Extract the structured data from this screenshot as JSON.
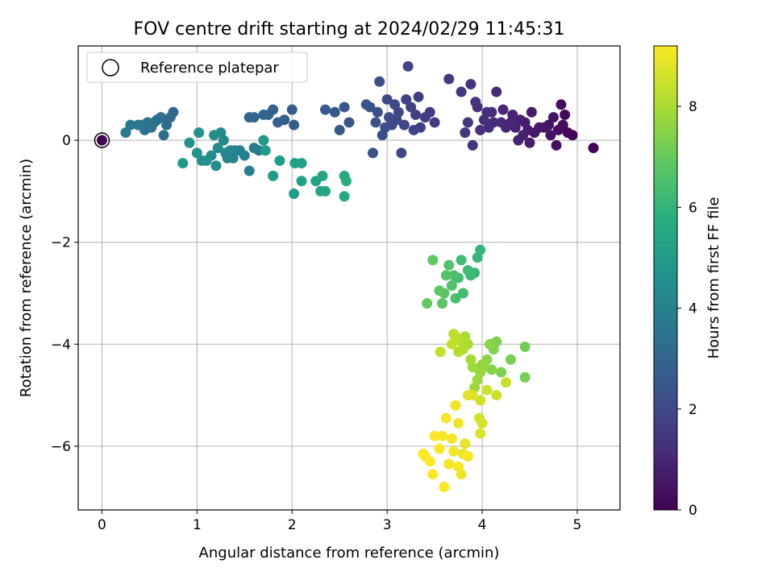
{
  "chart_data": {
    "type": "scatter",
    "title": "FOV centre drift starting at 2024/02/29 11:45:31",
    "xlabel": "Angular distance from reference (arcmin)",
    "ylabel": "Rotation from reference (arcmin)",
    "xlim": [
      -0.25,
      5.45
    ],
    "ylim": [
      -7.25,
      1.85
    ],
    "xticks": [
      0,
      1,
      2,
      3,
      4,
      5
    ],
    "yticks": [
      -6,
      -4,
      -2,
      0
    ],
    "xtick_labels": [
      "0",
      "1",
      "2",
      "3",
      "4",
      "5"
    ],
    "ytick_labels": [
      "−6",
      "−4",
      "−2",
      "0"
    ],
    "grid": true,
    "colormap": "viridis",
    "legend": {
      "location": "upper left",
      "entries": [
        {
          "label": "Reference platepar",
          "marker": "open-circle",
          "x": 0,
          "y": 0
        }
      ]
    },
    "colorbar": {
      "label": "Hours from first FF file",
      "range": [
        0,
        9.2
      ],
      "ticks": [
        0,
        2,
        4,
        6,
        8
      ],
      "tick_labels": [
        "0",
        "2",
        "4",
        "6",
        "8"
      ]
    },
    "points": [
      {
        "x": 5.17,
        "y": -0.15,
        "c": 0.05
      },
      {
        "x": 4.95,
        "y": 0.1,
        "c": 0.1
      },
      {
        "x": 4.9,
        "y": 0.15,
        "c": 0.15
      },
      {
        "x": 4.87,
        "y": 0.5,
        "c": 0.2
      },
      {
        "x": 4.85,
        "y": 0.3,
        "c": 0.25
      },
      {
        "x": 4.83,
        "y": 0.7,
        "c": 0.3
      },
      {
        "x": 4.8,
        "y": 0.2,
        "c": 0.35
      },
      {
        "x": 4.78,
        "y": -0.1,
        "c": 0.4
      },
      {
        "x": 4.75,
        "y": 0.45,
        "c": 0.45
      },
      {
        "x": 4.72,
        "y": 0.1,
        "c": 0.5
      },
      {
        "x": 4.7,
        "y": 0.3,
        "c": 0.5
      },
      {
        "x": 4.65,
        "y": 0.25,
        "c": 0.55
      },
      {
        "x": 4.6,
        "y": 0.25,
        "c": 0.6
      },
      {
        "x": 4.55,
        "y": 0.15,
        "c": 0.6
      },
      {
        "x": 4.52,
        "y": 0.55,
        "c": 0.65
      },
      {
        "x": 4.5,
        "y": -0.05,
        "c": 0.7
      },
      {
        "x": 4.48,
        "y": 0.2,
        "c": 0.7
      },
      {
        "x": 4.45,
        "y": 0.35,
        "c": 0.75
      },
      {
        "x": 4.43,
        "y": 0.1,
        "c": 0.8
      },
      {
        "x": 4.4,
        "y": 0.4,
        "c": 0.8
      },
      {
        "x": 4.38,
        "y": 0.0,
        "c": 0.85
      },
      {
        "x": 4.35,
        "y": 0.25,
        "c": 0.9
      },
      {
        "x": 4.32,
        "y": 0.5,
        "c": 0.9
      },
      {
        "x": 4.3,
        "y": 0.35,
        "c": 0.95
      },
      {
        "x": 4.25,
        "y": 0.25,
        "c": 1.0
      },
      {
        "x": 4.22,
        "y": 0.6,
        "c": 1.0
      },
      {
        "x": 4.2,
        "y": 0.35,
        "c": 1.05
      },
      {
        "x": 4.15,
        "y": 0.95,
        "c": 1.1
      },
      {
        "x": 4.12,
        "y": 0.35,
        "c": 1.1
      },
      {
        "x": 4.1,
        "y": 0.55,
        "c": 1.15
      },
      {
        "x": 4.07,
        "y": 0.25,
        "c": 1.2
      },
      {
        "x": 4.05,
        "y": 0.55,
        "c": 1.2
      },
      {
        "x": 4.02,
        "y": 0.4,
        "c": 1.25
      },
      {
        "x": 3.98,
        "y": 0.2,
        "c": 1.3
      },
      {
        "x": 3.95,
        "y": 0.65,
        "c": 1.3
      },
      {
        "x": 3.93,
        "y": 0.75,
        "c": 1.35
      },
      {
        "x": 3.9,
        "y": -0.1,
        "c": 1.4
      },
      {
        "x": 3.88,
        "y": 1.1,
        "c": 1.4
      },
      {
        "x": 3.85,
        "y": 0.35,
        "c": 1.45
      },
      {
        "x": 3.82,
        "y": 0.15,
        "c": 1.5
      },
      {
        "x": 3.78,
        "y": 0.95,
        "c": 1.5
      },
      {
        "x": 3.65,
        "y": 1.2,
        "c": 1.55
      },
      {
        "x": 3.5,
        "y": 0.35,
        "c": 1.6
      },
      {
        "x": 3.45,
        "y": 0.55,
        "c": 1.6
      },
      {
        "x": 3.4,
        "y": 0.45,
        "c": 1.65
      },
      {
        "x": 3.35,
        "y": 0.25,
        "c": 1.7
      },
      {
        "x": 3.33,
        "y": 0.85,
        "c": 1.7
      },
      {
        "x": 3.3,
        "y": 0.5,
        "c": 1.75
      },
      {
        "x": 3.28,
        "y": 0.2,
        "c": 1.8
      },
      {
        "x": 3.25,
        "y": 0.65,
        "c": 1.8
      },
      {
        "x": 3.22,
        "y": 1.45,
        "c": 1.85
      },
      {
        "x": 3.2,
        "y": 0.8,
        "c": 1.85
      },
      {
        "x": 3.18,
        "y": 0.3,
        "c": 1.9
      },
      {
        "x": 3.15,
        "y": -0.25,
        "c": 1.95
      },
      {
        "x": 3.12,
        "y": 0.55,
        "c": 1.95
      },
      {
        "x": 3.1,
        "y": 0.4,
        "c": 2.0
      },
      {
        "x": 3.08,
        "y": 0.7,
        "c": 2.0
      },
      {
        "x": 3.05,
        "y": 0.3,
        "c": 2.05
      },
      {
        "x": 3.02,
        "y": 0.45,
        "c": 2.1
      },
      {
        "x": 3.0,
        "y": 0.8,
        "c": 2.1
      },
      {
        "x": 2.98,
        "y": 0.25,
        "c": 2.15
      },
      {
        "x": 2.95,
        "y": 0.1,
        "c": 2.2
      },
      {
        "x": 2.92,
        "y": 1.15,
        "c": 2.2
      },
      {
        "x": 2.9,
        "y": 0.55,
        "c": 2.25
      },
      {
        "x": 2.88,
        "y": 0.35,
        "c": 2.3
      },
      {
        "x": 2.85,
        "y": -0.25,
        "c": 2.3
      },
      {
        "x": 2.82,
        "y": 0.65,
        "c": 2.35
      },
      {
        "x": 2.78,
        "y": 0.7,
        "c": 2.4
      },
      {
        "x": 2.6,
        "y": 0.35,
        "c": 2.45
      },
      {
        "x": 2.55,
        "y": 0.65,
        "c": 2.5
      },
      {
        "x": 2.5,
        "y": 0.2,
        "c": 2.5
      },
      {
        "x": 2.45,
        "y": 0.55,
        "c": 2.55
      },
      {
        "x": 2.35,
        "y": 0.6,
        "c": 2.6
      },
      {
        "x": 2.02,
        "y": 0.3,
        "c": 2.65
      },
      {
        "x": 2.0,
        "y": 0.6,
        "c": 2.7
      },
      {
        "x": 1.92,
        "y": 0.4,
        "c": 2.75
      },
      {
        "x": 1.85,
        "y": 0.35,
        "c": 2.8
      },
      {
        "x": 1.8,
        "y": 0.6,
        "c": 2.85
      },
      {
        "x": 1.75,
        "y": 0.5,
        "c": 2.9
      },
      {
        "x": 1.7,
        "y": 0.5,
        "c": 2.95
      },
      {
        "x": 1.6,
        "y": 0.45,
        "c": 3.0
      },
      {
        "x": 1.55,
        "y": 0.45,
        "c": 3.05
      },
      {
        "x": 0.75,
        "y": 0.55,
        "c": 3.1
      },
      {
        "x": 0.72,
        "y": 0.45,
        "c": 3.15
      },
      {
        "x": 0.68,
        "y": 0.3,
        "c": 3.2
      },
      {
        "x": 0.65,
        "y": 0.1,
        "c": 3.25
      },
      {
        "x": 0.62,
        "y": 0.45,
        "c": 3.3
      },
      {
        "x": 0.58,
        "y": 0.4,
        "c": 3.35
      },
      {
        "x": 0.55,
        "y": 0.35,
        "c": 3.4
      },
      {
        "x": 0.52,
        "y": 0.25,
        "c": 3.45
      },
      {
        "x": 0.48,
        "y": 0.35,
        "c": 3.5
      },
      {
        "x": 0.45,
        "y": 0.2,
        "c": 3.55
      },
      {
        "x": 0.42,
        "y": 0.3,
        "c": 3.6
      },
      {
        "x": 0.38,
        "y": 0.3,
        "c": 3.65
      },
      {
        "x": 0.3,
        "y": 0.3,
        "c": 3.7
      },
      {
        "x": 0.25,
        "y": 0.15,
        "c": 3.75
      },
      {
        "x": 1.65,
        "y": -0.2,
        "c": 3.8
      },
      {
        "x": 1.6,
        "y": -0.15,
        "c": 3.85
      },
      {
        "x": 1.55,
        "y": -0.6,
        "c": 3.9
      },
      {
        "x": 1.5,
        "y": -0.3,
        "c": 3.95
      },
      {
        "x": 1.45,
        "y": -0.2,
        "c": 4.0
      },
      {
        "x": 1.4,
        "y": -0.2,
        "c": 4.05
      },
      {
        "x": 1.38,
        "y": -0.35,
        "c": 4.1
      },
      {
        "x": 1.35,
        "y": -0.2,
        "c": 4.15
      },
      {
        "x": 1.32,
        "y": -0.35,
        "c": 4.2
      },
      {
        "x": 1.3,
        "y": -0.25,
        "c": 4.25
      },
      {
        "x": 1.28,
        "y": 0.0,
        "c": 4.3
      },
      {
        "x": 1.25,
        "y": 0.15,
        "c": 4.35
      },
      {
        "x": 1.22,
        "y": -0.15,
        "c": 4.4
      },
      {
        "x": 1.2,
        "y": -0.5,
        "c": 4.45
      },
      {
        "x": 1.18,
        "y": 0.1,
        "c": 4.5
      },
      {
        "x": 1.15,
        "y": -0.3,
        "c": 4.55
      },
      {
        "x": 1.1,
        "y": -0.4,
        "c": 4.6
      },
      {
        "x": 1.05,
        "y": -0.4,
        "c": 4.65
      },
      {
        "x": 1.02,
        "y": 0.15,
        "c": 4.7
      },
      {
        "x": 1.0,
        "y": -0.25,
        "c": 4.75
      },
      {
        "x": 0.92,
        "y": -0.05,
        "c": 4.8
      },
      {
        "x": 0.85,
        "y": -0.45,
        "c": 4.85
      },
      {
        "x": 1.7,
        "y": -0.0,
        "c": 4.9
      },
      {
        "x": 1.72,
        "y": -0.2,
        "c": 4.95
      },
      {
        "x": 1.8,
        "y": -0.7,
        "c": 5.0
      },
      {
        "x": 1.87,
        "y": -0.4,
        "c": 5.05
      },
      {
        "x": 2.02,
        "y": -1.05,
        "c": 5.1
      },
      {
        "x": 2.03,
        "y": -0.45,
        "c": 5.15
      },
      {
        "x": 2.1,
        "y": -0.45,
        "c": 5.2
      },
      {
        "x": 2.1,
        "y": -0.8,
        "c": 5.25
      },
      {
        "x": 2.25,
        "y": -0.8,
        "c": 5.3
      },
      {
        "x": 2.3,
        "y": -1.0,
        "c": 5.35
      },
      {
        "x": 2.32,
        "y": -0.7,
        "c": 5.4
      },
      {
        "x": 2.35,
        "y": -1.0,
        "c": 5.45
      },
      {
        "x": 2.55,
        "y": -0.7,
        "c": 5.5
      },
      {
        "x": 2.55,
        "y": -1.1,
        "c": 5.55
      },
      {
        "x": 2.57,
        "y": -0.8,
        "c": 5.6
      },
      {
        "x": 3.98,
        "y": -2.15,
        "c": 6.1
      },
      {
        "x": 3.95,
        "y": -2.3,
        "c": 6.15
      },
      {
        "x": 3.92,
        "y": -2.6,
        "c": 6.2
      },
      {
        "x": 3.88,
        "y": -2.65,
        "c": 6.25
      },
      {
        "x": 3.85,
        "y": -2.55,
        "c": 6.3
      },
      {
        "x": 3.78,
        "y": -2.35,
        "c": 6.35
      },
      {
        "x": 3.8,
        "y": -3.0,
        "c": 6.4
      },
      {
        "x": 3.75,
        "y": -2.7,
        "c": 6.45
      },
      {
        "x": 3.72,
        "y": -3.1,
        "c": 6.5
      },
      {
        "x": 3.7,
        "y": -2.65,
        "c": 6.55
      },
      {
        "x": 3.68,
        "y": -2.85,
        "c": 6.6
      },
      {
        "x": 3.65,
        "y": -2.45,
        "c": 6.65
      },
      {
        "x": 3.62,
        "y": -2.65,
        "c": 6.7
      },
      {
        "x": 3.6,
        "y": -3.0,
        "c": 6.75
      },
      {
        "x": 3.58,
        "y": -3.2,
        "c": 6.8
      },
      {
        "x": 3.55,
        "y": -2.95,
        "c": 6.85
      },
      {
        "x": 3.48,
        "y": -2.35,
        "c": 6.9
      },
      {
        "x": 3.42,
        "y": -3.2,
        "c": 6.95
      },
      {
        "x": 4.45,
        "y": -4.05,
        "c": 7.2
      },
      {
        "x": 4.45,
        "y": -4.65,
        "c": 7.25
      },
      {
        "x": 4.3,
        "y": -4.3,
        "c": 7.3
      },
      {
        "x": 4.2,
        "y": -4.55,
        "c": 7.35
      },
      {
        "x": 4.15,
        "y": -3.95,
        "c": 7.4
      },
      {
        "x": 4.12,
        "y": -4.1,
        "c": 7.45
      },
      {
        "x": 4.1,
        "y": -4.5,
        "c": 7.5
      },
      {
        "x": 4.08,
        "y": -4.0,
        "c": 7.55
      },
      {
        "x": 4.05,
        "y": -4.3,
        "c": 7.6
      },
      {
        "x": 4.02,
        "y": -4.45,
        "c": 7.65
      },
      {
        "x": 4.0,
        "y": -4.4,
        "c": 7.7
      },
      {
        "x": 3.98,
        "y": -4.55,
        "c": 7.75
      },
      {
        "x": 3.95,
        "y": -4.7,
        "c": 7.8
      },
      {
        "x": 3.92,
        "y": -4.85,
        "c": 7.85
      },
      {
        "x": 3.9,
        "y": -4.45,
        "c": 7.9
      },
      {
        "x": 3.88,
        "y": -4.3,
        "c": 7.95
      },
      {
        "x": 3.85,
        "y": -4.0,
        "c": 8.0
      },
      {
        "x": 3.82,
        "y": -3.85,
        "c": 8.05
      },
      {
        "x": 3.8,
        "y": -4.1,
        "c": 8.1
      },
      {
        "x": 3.78,
        "y": -3.95,
        "c": 8.15
      },
      {
        "x": 3.75,
        "y": -4.15,
        "c": 8.2
      },
      {
        "x": 3.72,
        "y": -3.85,
        "c": 8.25
      },
      {
        "x": 3.7,
        "y": -3.8,
        "c": 8.3
      },
      {
        "x": 3.68,
        "y": -4.0,
        "c": 8.35
      },
      {
        "x": 3.56,
        "y": -4.15,
        "c": 8.4
      },
      {
        "x": 4.25,
        "y": -4.75,
        "c": 8.45
      },
      {
        "x": 4.15,
        "y": -5.0,
        "c": 8.5
      },
      {
        "x": 4.05,
        "y": -4.9,
        "c": 8.5
      },
      {
        "x": 3.98,
        "y": -5.1,
        "c": 8.55
      },
      {
        "x": 3.97,
        "y": -5.45,
        "c": 8.6
      },
      {
        "x": 4.0,
        "y": -5.55,
        "c": 8.65
      },
      {
        "x": 3.98,
        "y": -5.75,
        "c": 8.7
      },
      {
        "x": 3.9,
        "y": -5.0,
        "c": 8.75
      },
      {
        "x": 3.85,
        "y": -5.0,
        "c": 8.8
      },
      {
        "x": 3.82,
        "y": -5.95,
        "c": 8.85
      },
      {
        "x": 3.8,
        "y": -6.15,
        "c": 8.9
      },
      {
        "x": 3.78,
        "y": -6.55,
        "c": 8.95
      },
      {
        "x": 3.75,
        "y": -5.55,
        "c": 9.0
      },
      {
        "x": 3.72,
        "y": -5.2,
        "c": 9.0
      },
      {
        "x": 3.7,
        "y": -6.1,
        "c": 9.05
      },
      {
        "x": 3.68,
        "y": -5.85,
        "c": 9.05
      },
      {
        "x": 3.65,
        "y": -6.35,
        "c": 9.1
      },
      {
        "x": 3.62,
        "y": -5.45,
        "c": 9.1
      },
      {
        "x": 3.6,
        "y": -6.8,
        "c": 9.15
      },
      {
        "x": 3.58,
        "y": -5.8,
        "c": 9.15
      },
      {
        "x": 3.55,
        "y": -6.05,
        "c": 9.2
      },
      {
        "x": 3.5,
        "y": -5.8,
        "c": 9.2
      },
      {
        "x": 3.45,
        "y": -6.3,
        "c": 9.2
      },
      {
        "x": 3.48,
        "y": -6.55,
        "c": 9.2
      },
      {
        "x": 3.4,
        "y": -6.2,
        "c": 9.2
      },
      {
        "x": 3.38,
        "y": -6.15,
        "c": 9.2
      },
      {
        "x": 3.85,
        "y": -6.2,
        "c": 9.1
      },
      {
        "x": 3.75,
        "y": -6.4,
        "c": 9.15
      }
    ]
  }
}
